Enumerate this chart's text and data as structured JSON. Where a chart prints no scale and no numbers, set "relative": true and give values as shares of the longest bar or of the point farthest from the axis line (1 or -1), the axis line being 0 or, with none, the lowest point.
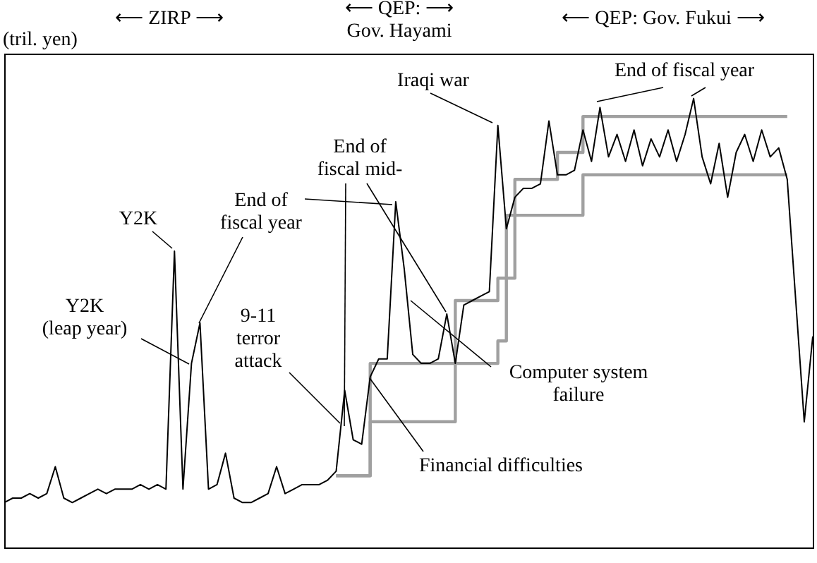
{
  "chart_data": {
    "type": "line",
    "relative": true,
    "ylabel": "(tril. yen)",
    "categories": [
      null,
      null,
      null,
      null,
      null,
      null,
      null,
      null,
      null,
      null,
      null,
      null,
      null,
      null,
      null,
      null,
      null,
      null,
      null,
      null,
      null,
      null,
      null,
      null,
      null,
      null,
      null,
      null,
      null,
      null,
      null,
      null,
      null,
      null,
      null,
      null,
      null,
      null,
      null,
      null,
      null,
      null,
      null,
      null,
      null,
      null,
      null,
      null,
      null,
      null,
      null,
      null,
      null,
      null,
      null,
      null,
      null,
      null,
      null,
      null,
      null,
      null,
      null,
      null,
      null,
      null,
      null,
      null,
      null,
      null,
      null,
      null,
      null,
      null,
      null,
      null,
      null,
      null,
      null,
      null,
      null,
      null,
      null,
      null,
      null,
      null,
      null,
      null,
      null,
      null,
      null,
      null,
      null,
      null,
      null,
      null
    ],
    "series": [
      {
        "type": "line",
        "color": "#000000",
        "values": [
          0.1,
          0.11,
          0.11,
          0.12,
          0.11,
          0.12,
          0.18,
          0.11,
          0.1,
          0.11,
          0.12,
          0.13,
          0.12,
          0.13,
          0.13,
          0.13,
          0.14,
          0.13,
          0.14,
          0.13,
          0.66,
          0.13,
          0.41,
          0.5,
          0.13,
          0.14,
          0.21,
          0.11,
          0.1,
          0.1,
          0.11,
          0.12,
          0.18,
          0.12,
          0.13,
          0.14,
          0.14,
          0.14,
          0.15,
          0.17,
          0.35,
          0.24,
          0.23,
          0.38,
          0.42,
          0.42,
          0.77,
          0.62,
          0.43,
          0.41,
          0.41,
          0.42,
          0.52,
          0.41,
          0.54,
          0.55,
          0.56,
          0.57,
          0.94,
          0.71,
          0.78,
          0.8,
          0.8,
          0.81,
          0.95,
          0.83,
          0.83,
          0.84,
          0.93,
          0.86,
          0.98,
          0.87,
          0.92,
          0.86,
          0.93,
          0.85,
          0.91,
          0.87,
          0.93,
          0.86,
          0.92,
          1.0,
          0.87,
          0.81,
          0.9,
          0.78,
          0.88,
          0.92,
          0.86,
          0.93,
          0.87,
          0.89,
          0.82,
          0.55,
          0.28,
          0.47
        ]
      },
      {
        "type": "step",
        "color": "#a0a0a0",
        "values": [
          null,
          null,
          null,
          null,
          null,
          null,
          null,
          null,
          null,
          null,
          null,
          null,
          null,
          null,
          null,
          null,
          null,
          null,
          null,
          null,
          null,
          null,
          null,
          null,
          null,
          null,
          null,
          null,
          null,
          null,
          null,
          null,
          null,
          null,
          null,
          null,
          null,
          null,
          null,
          0.16,
          0.16,
          0.16,
          0.16,
          0.28,
          0.28,
          0.28,
          0.28,
          0.28,
          0.28,
          0.28,
          0.28,
          0.28,
          0.28,
          0.41,
          0.41,
          0.41,
          0.41,
          0.41,
          0.46,
          0.74,
          0.74,
          0.74,
          0.74,
          0.74,
          0.74,
          0.74,
          0.74,
          0.74,
          0.83,
          0.83,
          0.83,
          0.83,
          0.83,
          0.83,
          0.83,
          0.83,
          0.83,
          0.83,
          0.83,
          0.83,
          0.83,
          0.83,
          0.83,
          0.83,
          0.83,
          0.83,
          0.83,
          0.83,
          0.83,
          0.83,
          0.83,
          0.83,
          0.83,
          null,
          null,
          null
        ]
      },
      {
        "type": "step",
        "color": "#a0a0a0",
        "values": [
          null,
          null,
          null,
          null,
          null,
          null,
          null,
          null,
          null,
          null,
          null,
          null,
          null,
          null,
          null,
          null,
          null,
          null,
          null,
          null,
          null,
          null,
          null,
          null,
          null,
          null,
          null,
          null,
          null,
          null,
          null,
          null,
          null,
          null,
          null,
          null,
          null,
          null,
          null,
          0.16,
          0.16,
          0.16,
          0.16,
          0.41,
          0.41,
          0.41,
          0.41,
          0.41,
          0.41,
          0.41,
          0.41,
          0.41,
          0.41,
          0.55,
          0.55,
          0.55,
          0.55,
          0.55,
          0.6,
          0.6,
          0.82,
          0.82,
          0.82,
          0.82,
          0.82,
          0.88,
          0.88,
          0.88,
          0.96,
          0.96,
          0.96,
          0.96,
          0.96,
          0.96,
          0.96,
          0.96,
          0.96,
          0.96,
          0.96,
          0.96,
          0.96,
          0.96,
          0.96,
          0.96,
          0.96,
          0.96,
          0.96,
          0.96,
          0.96,
          0.96,
          0.96,
          0.96,
          0.96,
          null,
          null,
          null
        ]
      }
    ],
    "annotations": [
      "⟵ ZIRP ⟶",
      "⟵ QEP: ⟶\nGov. Hayami",
      "⟵ QEP: Gov. Fukui ⟶",
      "Y2K",
      "Y2K\n(leap year)",
      "End of\nfiscal year",
      "9-11\nterror\nattack",
      "End of\nfiscal mid-",
      "Iraqi war",
      "End of fiscal year",
      "Computer system\nfailure",
      "Financial difficulties"
    ]
  }
}
